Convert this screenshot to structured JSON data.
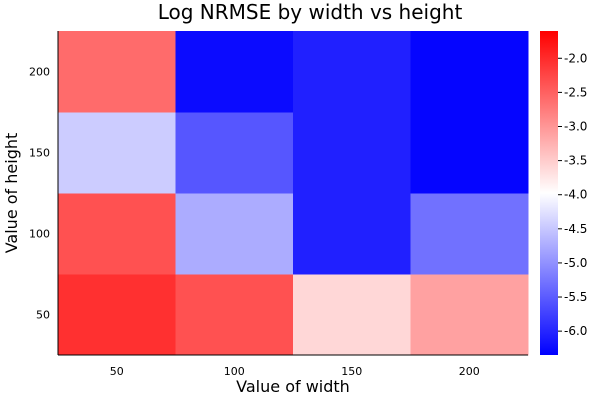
{
  "chart_data": {
    "type": "heatmap",
    "title": "Log NRMSE by width vs height",
    "xlabel": "Value of width",
    "ylabel": "Value of height",
    "x": [
      50,
      100,
      150,
      200
    ],
    "y": [
      50,
      100,
      150,
      200
    ],
    "z": [
      [
        -2.05,
        -2.35,
        -3.6,
        -3.1
      ],
      [
        -2.35,
        -4.75,
        -6.05,
        -5.3
      ],
      [
        -4.45,
        -5.55,
        -6.05,
        -6.3
      ],
      [
        -2.6,
        -6.25,
        -6.05,
        -6.3
      ]
    ],
    "z_orientation": "z[i] is the row for y[i]; z[i][j] is the cell at x[j]",
    "colorbar": {
      "min": -6.35,
      "max": -1.6,
      "ticks": [
        -2.0,
        -2.5,
        -3.0,
        -3.5,
        -4.0,
        -4.5,
        -5.0,
        -5.5,
        -6.0
      ],
      "tick_labels": [
        "-2.0",
        "-2.5",
        "-3.0",
        "-3.5",
        "-4.0",
        "-4.5",
        "-5.0",
        "-5.5",
        "-6.0"
      ],
      "colormap": [
        "#0000ff",
        "#ffffff",
        "#ff0000"
      ]
    },
    "grid": false,
    "legend": "none"
  }
}
